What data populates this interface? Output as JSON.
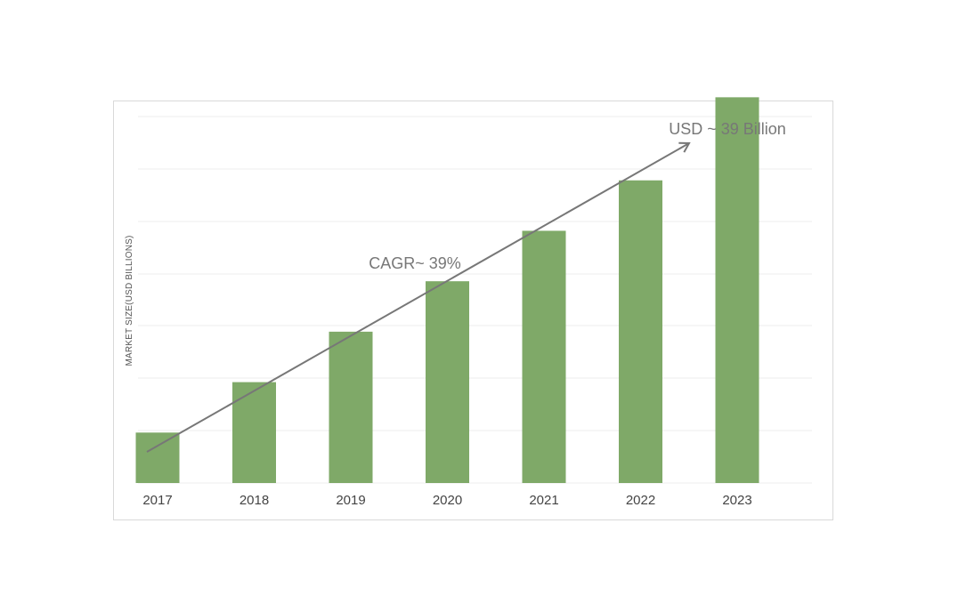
{
  "chart_data": {
    "type": "bar",
    "title": "",
    "xlabel": "",
    "ylabel": "MARKET SIZE(USD BILLIONS)",
    "categories": [
      "2017",
      "2018",
      "2019",
      "2020",
      "2021",
      "2022",
      "2023"
    ],
    "values": [
      5.1,
      10.2,
      15.3,
      20.4,
      25.5,
      30.6,
      39
    ],
    "ylim": [
      0,
      42
    ],
    "grid": true,
    "annotations": {
      "cagr": "CAGR~ 39%",
      "end_value": "USD ~ 39 Billion"
    },
    "colors": {
      "bar": "#7fa968",
      "grid": "#ededed",
      "arrow": "#777777"
    }
  }
}
